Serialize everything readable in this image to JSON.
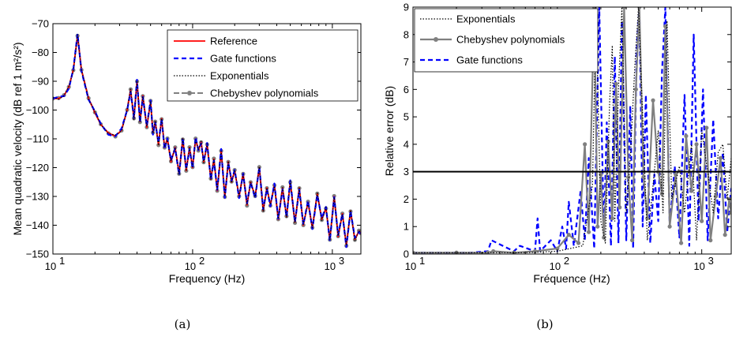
{
  "chart_data": [
    {
      "type": "line",
      "panel_label": "(a)",
      "xlabel": "Frequency (Hz)",
      "ylabel": "Mean quadratic velocity (dB ref 1 m²/s²)",
      "xscale": "log",
      "xlim": [
        10,
        1600
      ],
      "ylim": [
        -150,
        -70
      ],
      "xticks": [
        10,
        100,
        1000
      ],
      "xtick_labels": [
        "10",
        "10",
        "10"
      ],
      "xtick_exponents": [
        "1",
        "2",
        "3"
      ],
      "yticks": [
        -150,
        -140,
        -130,
        -120,
        -110,
        -100,
        -90,
        -80,
        -70
      ],
      "ytick_labels": [
        "−150",
        "−140",
        "−130",
        "−120",
        "−110",
        "−100",
        "−90",
        "−80",
        "−70"
      ],
      "grid": false,
      "legend_position": "top-right",
      "series": [
        {
          "name": "Reference",
          "color": "#ff0000",
          "style": "solid"
        },
        {
          "name": "Gate functions",
          "color": "#0000ff",
          "style": "dashed"
        },
        {
          "name": "Exponentials",
          "color": "#000000",
          "style": "dotted"
        },
        {
          "name": "Chebyshev polynomials",
          "color": "#808080",
          "style": "dash-marker"
        }
      ],
      "x": [
        10,
        11,
        12,
        13,
        14,
        15,
        16,
        18,
        20,
        22,
        25,
        28,
        31,
        34,
        36,
        38,
        40,
        42,
        44,
        47,
        50,
        52,
        54,
        57,
        60,
        63,
        66,
        70,
        75,
        80,
        85,
        90,
        95,
        100,
        105,
        110,
        115,
        120,
        127,
        135,
        142,
        150,
        160,
        170,
        180,
        190,
        200,
        215,
        230,
        245,
        260,
        280,
        300,
        320,
        340,
        360,
        385,
        410,
        440,
        470,
        500,
        540,
        580,
        620,
        670,
        720,
        780,
        840,
        900,
        960,
        1030,
        1100,
        1180,
        1260,
        1350,
        1450,
        1550,
        1600
      ],
      "y": [
        -96,
        -96,
        -95,
        -92,
        -86,
        -74,
        -86,
        -96,
        -101,
        -105,
        -108,
        -109,
        -107,
        -100,
        -93,
        -103,
        -90,
        -104,
        -95,
        -106,
        -97,
        -108,
        -104,
        -112,
        -103,
        -113,
        -110,
        -118,
        -113,
        -122,
        -110,
        -121,
        -113,
        -120,
        -110,
        -114,
        -111,
        -118,
        -112,
        -124,
        -117,
        -128,
        -114,
        -130,
        -118,
        -125,
        -121,
        -130,
        -122,
        -133,
        -125,
        -130,
        -120,
        -135,
        -127,
        -133,
        -126,
        -138,
        -127,
        -137,
        -125,
        -139,
        -127,
        -140,
        -132,
        -141,
        -129,
        -138,
        -134,
        -145,
        -130,
        -144,
        -136,
        -147,
        -135,
        -145,
        -142,
        -143
      ]
    },
    {
      "type": "line",
      "panel_label": "(b)",
      "xlabel": "Fréquence (Hz)",
      "ylabel": "Relative error (dB)",
      "xscale": "log",
      "xlim": [
        10,
        1600
      ],
      "ylim": [
        0,
        9
      ],
      "xticks": [
        10,
        100,
        1000
      ],
      "xtick_labels": [
        "10",
        "10",
        "10"
      ],
      "xtick_exponents": [
        "1",
        "2",
        "3"
      ],
      "yticks": [
        0,
        1,
        2,
        3,
        4,
        5,
        6,
        7,
        8,
        9
      ],
      "ytick_labels": [
        "0",
        "1",
        "2",
        "3",
        "4",
        "5",
        "6",
        "7",
        "8",
        "9"
      ],
      "threshold": 3,
      "grid": false,
      "legend_position": "top-left",
      "series": [
        {
          "name": "Exponentials",
          "color": "#000000",
          "style": "dotted",
          "x": [
            10,
            30,
            60,
            100,
            150,
            175,
            185,
            200,
            215,
            230,
            240,
            250,
            265,
            280,
            300,
            320,
            345,
            365,
            390,
            420,
            460,
            500,
            540,
            575,
            620,
            700,
            760,
            850,
            920,
            1000,
            1100,
            1200,
            1300,
            1400,
            1500,
            1600
          ],
          "y": [
            0.05,
            0.05,
            0.05,
            0.1,
            0.3,
            2.5,
            9,
            1.2,
            0.4,
            5.5,
            7.6,
            1.2,
            6.0,
            9,
            1.5,
            3.5,
            7.0,
            9,
            5.0,
            0.5,
            2.5,
            4.5,
            1.5,
            8.5,
            2.0,
            3.2,
            1.5,
            4.0,
            0.5,
            4.5,
            3.0,
            1.5,
            3.7,
            4.0,
            2.0,
            3.5
          ]
        },
        {
          "name": "Chebyshev polynomials",
          "color": "#808080",
          "style": "solid-marker",
          "x": [
            10,
            20,
            33,
            36,
            50,
            70,
            100,
            120,
            140,
            155,
            165,
            180,
            190,
            200,
            210,
            225,
            240,
            255,
            270,
            290,
            310,
            330,
            350,
            370,
            395,
            420,
            460,
            500,
            530,
            560,
            600,
            660,
            720,
            780,
            850,
            920,
            1000,
            1080,
            1150,
            1250,
            1350,
            1450,
            1550,
            1600
          ],
          "y": [
            0.05,
            0.05,
            0.05,
            0.1,
            0.05,
            0.1,
            0.2,
            0.7,
            0.4,
            4.0,
            0.8,
            9,
            1.0,
            2.9,
            0.6,
            4.1,
            1.3,
            6.2,
            1.7,
            9,
            2.8,
            0.5,
            6.0,
            9,
            2.8,
            1.3,
            5.6,
            3.0,
            2.2,
            8.3,
            1.0,
            2.9,
            0.4,
            4.3,
            2.3,
            4.0,
            1.2,
            4.6,
            0.5,
            2.1,
            3.5,
            0.7,
            2.0,
            1.5
          ]
        },
        {
          "name": "Gate functions",
          "color": "#0000ff",
          "style": "dashed",
          "x": [
            10,
            25,
            33,
            35,
            50,
            55,
            70,
            73,
            76,
            90,
            100,
            108,
            115,
            120,
            130,
            145,
            155,
            165,
            180,
            195,
            210,
            220,
            235,
            250,
            265,
            280,
            300,
            320,
            335,
            355,
            370,
            390,
            410,
            440,
            470,
            500,
            530,
            560,
            600,
            650,
            700,
            760,
            820,
            880,
            950,
            1020,
            1100,
            1200,
            1300,
            1400,
            1500,
            1600
          ],
          "y": [
            0.05,
            0.05,
            0.1,
            0.5,
            0.1,
            0.3,
            0.1,
            1.3,
            0.1,
            0.5,
            0.1,
            1.0,
            0.2,
            1.9,
            0.3,
            2.3,
            0.5,
            3.5,
            0.2,
            9,
            0.6,
            4.8,
            0.3,
            7.2,
            0.4,
            8.5,
            0.5,
            5.4,
            0.2,
            7.5,
            9,
            1.0,
            5.8,
            0.4,
            2.9,
            1.2,
            6.6,
            9,
            1.0,
            3.2,
            0.6,
            5.8,
            0.3,
            8.0,
            1.2,
            6.0,
            0.5,
            4.9,
            1.3,
            3.7,
            0.8,
            2.4
          ]
        }
      ]
    }
  ]
}
